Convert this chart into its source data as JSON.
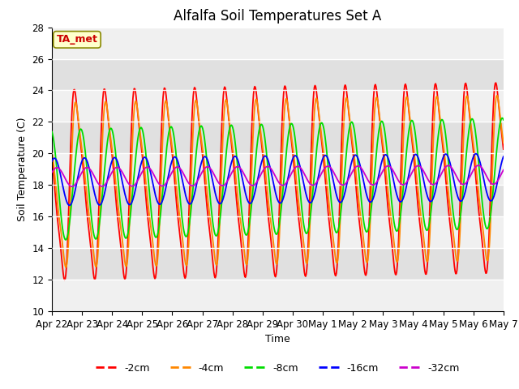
{
  "title": "Alfalfa Soil Temperatures Set A",
  "xlabel": "Time",
  "ylabel": "Soil Temperature (C)",
  "ylim": [
    10,
    28
  ],
  "yticks": [
    10,
    12,
    14,
    16,
    18,
    20,
    22,
    24,
    26,
    28
  ],
  "colors": {
    "-2cm": "#ff0000",
    "-4cm": "#ff8800",
    "-8cm": "#00dd00",
    "-16cm": "#0000ff",
    "-32cm": "#cc00cc"
  },
  "annotation_text": "TA_met",
  "annotation_color": "#cc0000",
  "annotation_bg": "#ffffcc",
  "plot_bg_light": "#f0f0f0",
  "plot_bg_dark": "#e0e0e0",
  "title_fontsize": 12,
  "axis_label_fontsize": 9,
  "tick_fontsize": 8.5,
  "x_tick_labels": [
    "Apr 22",
    "Apr 23",
    "Apr 24",
    "Apr 25",
    "Apr 26",
    "Apr 27",
    "Apr 28",
    "Apr 29",
    "Apr 30",
    "May 1",
    "May 2",
    "May 3",
    "May 4",
    "May 5",
    "May 6",
    "May 7"
  ]
}
